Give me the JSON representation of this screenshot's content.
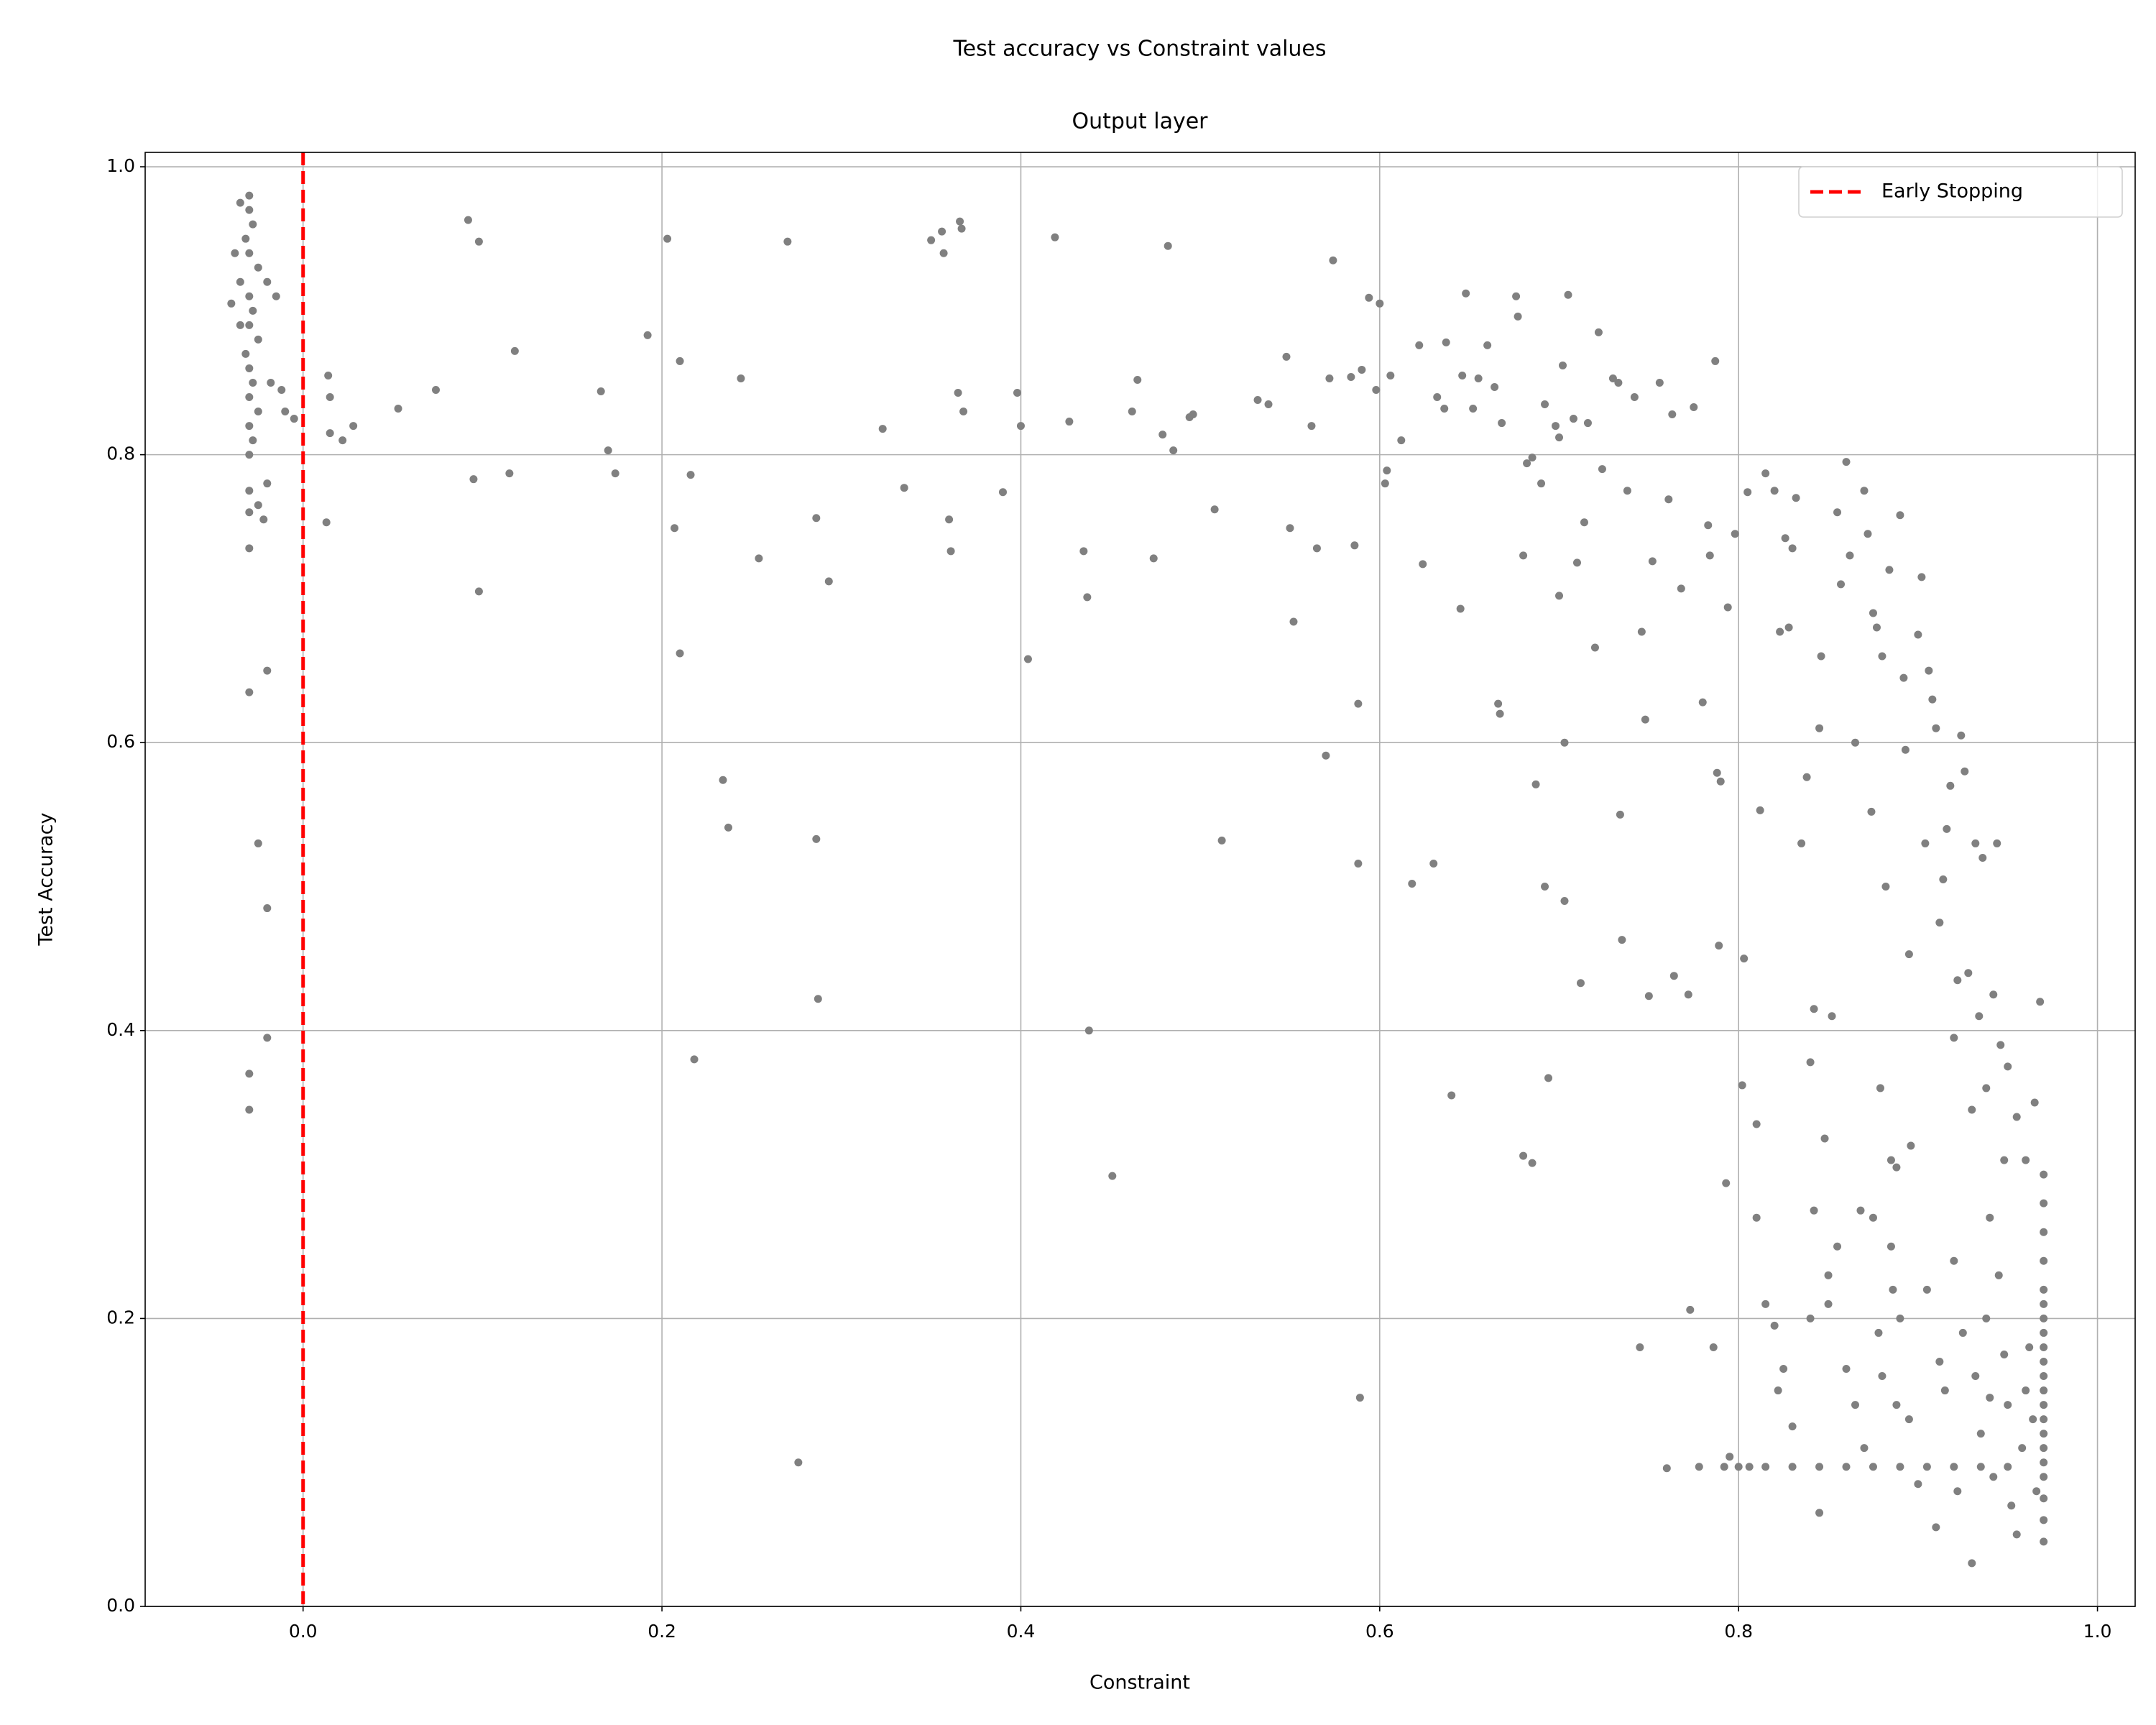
{
  "chart_data": {
    "type": "scatter",
    "suptitle": "Test accuracy vs Constraint values",
    "title": "Output layer",
    "xlabel": "Constraint",
    "ylabel": "Test Accuracy",
    "xlim": [
      -0.088,
      1.021
    ],
    "ylim": [
      0,
      1.01
    ],
    "xticks": [
      {
        "value": 0,
        "label": "0.0"
      },
      0.2,
      0.4,
      0.6,
      0.8,
      {
        "value": 1,
        "label": "1.0"
      }
    ],
    "yticks": [
      {
        "value": 0,
        "label": "0.0"
      },
      0.2,
      0.4,
      0.6,
      0.8,
      {
        "value": 1,
        "label": "1.0"
      }
    ],
    "grid": true,
    "legend": "upper right",
    "vlines": [
      {
        "x": 0,
        "name": "Early Stopping",
        "color": "#ff0000"
      }
    ],
    "series": [
      {
        "color": "#808080",
        "x": [
          -0.03,
          -0.035,
          -0.03,
          -0.028,
          -0.032,
          -0.03,
          -0.025,
          -0.035,
          -0.03,
          -0.028,
          -0.04,
          -0.03,
          -0.025,
          -0.032,
          -0.03,
          -0.028,
          -0.03,
          -0.025,
          -0.03,
          -0.028,
          -0.03,
          -0.02,
          -0.015,
          -0.01,
          -0.005,
          -0.018,
          -0.02,
          -0.03,
          -0.03,
          -0.025,
          -0.03,
          -0.02,
          -0.03,
          -0.025,
          -0.02,
          -0.02,
          -0.03,
          -0.03,
          -0.035,
          -0.038,
          -0.022,
          -0.012,
          0.014,
          0.015,
          0.015,
          0.022,
          0.028,
          0.013,
          0.053,
          0.074,
          0.092,
          0.098,
          0.095,
          0.098,
          0.115,
          0.118,
          0.166,
          0.17,
          0.174,
          0.192,
          0.203,
          0.207,
          0.21,
          0.21,
          0.216,
          0.218,
          0.234,
          0.237,
          0.244,
          0.254,
          0.27,
          0.276,
          0.286,
          0.286,
          0.287,
          0.293,
          0.323,
          0.335,
          0.35,
          0.356,
          0.357,
          0.36,
          0.361,
          0.365,
          0.366,
          0.367,
          0.368,
          0.39,
          0.398,
          0.4,
          0.404,
          0.419,
          0.427,
          0.435,
          0.437,
          0.438,
          0.451,
          0.462,
          0.465,
          0.474,
          0.479,
          0.482,
          0.485,
          0.494,
          0.496,
          0.508,
          0.512,
          0.532,
          0.538,
          0.548,
          0.55,
          0.552,
          0.562,
          0.565,
          0.57,
          0.572,
          0.574,
          0.584,
          0.586,
          0.588,
          0.588,
          0.589,
          0.59,
          0.594,
          0.598,
          0.6,
          0.603,
          0.604,
          0.606,
          0.612,
          0.618,
          0.622,
          0.624,
          0.63,
          0.632,
          0.636,
          0.637,
          0.64,
          0.645,
          0.646,
          0.648,
          0.652,
          0.655,
          0.66,
          0.664,
          0.666,
          0.667,
          0.668,
          0.676,
          0.677,
          0.68,
          0.68,
          0.682,
          0.685,
          0.685,
          0.687,
          0.69,
          0.692,
          0.692,
          0.694,
          0.698,
          0.7,
          0.7,
          0.702,
          0.703,
          0.703,
          0.705,
          0.708,
          0.71,
          0.712,
          0.714,
          0.716,
          0.72,
          0.722,
          0.724,
          0.73,
          0.733,
          0.734,
          0.735,
          0.738,
          0.742,
          0.745,
          0.746,
          0.748,
          0.75,
          0.752,
          0.756,
          0.76,
          0.761,
          0.763,
          0.764,
          0.768,
          0.772,
          0.773,
          0.775,
          0.778,
          0.78,
          0.783,
          0.784,
          0.786,
          0.787,
          0.788,
          0.789,
          0.79,
          0.792,
          0.793,
          0.794,
          0.795,
          0.798,
          0.8,
          0.802,
          0.803,
          0.805,
          0.806,
          0.81,
          0.81,
          0.812,
          0.815,
          0.82,
          0.823,
          0.826,
          0.828,
          0.83,
          0.832,
          0.835,
          0.838,
          0.84,
          0.842,
          0.845,
          0.846,
          0.848,
          0.85,
          0.852,
          0.855,
          0.857,
          0.86,
          0.862,
          0.865,
          0.868,
          0.87,
          0.872,
          0.874,
          0.875,
          0.877,
          0.879,
          0.88,
          0.882,
          0.884,
          0.885,
          0.886,
          0.888,
          0.89,
          0.892,
          0.893,
          0.895,
          0.896,
          0.9,
          0.902,
          0.904,
          0.906,
          0.908,
          0.91,
          0.912,
          0.914,
          0.916,
          0.918,
          0.92,
          0.922,
          0.924,
          0.926,
          0.928,
          0.93,
          0.932,
          0.934,
          0.936,
          0.938,
          0.94,
          0.942,
          0.944,
          0.946,
          0.948,
          0.95,
          0.955,
          0.96,
          0.965,
          0.968,
          0.97,
          0.815,
          0.82,
          0.822,
          0.825,
          0.83,
          0.84,
          0.842,
          0.845,
          0.85,
          0.855,
          0.86,
          0.865,
          0.87,
          0.875,
          0.878,
          0.88,
          0.885,
          0.888,
          0.89,
          0.895,
          0.9,
          0.905,
          0.91,
          0.912,
          0.915,
          0.92,
          0.922,
          0.925,
          0.93,
          0.932,
          0.935,
          0.938,
          0.94,
          0.942,
          0.945,
          0.948,
          0.95,
          0.952,
          0.955,
          0.958,
          0.96,
          0.962,
          0.964,
          0.966,
          0.815,
          0.83,
          0.845,
          0.86,
          0.875,
          0.89,
          0.905,
          0.92,
          0.935,
          0.95,
          0.97,
          0.97,
          0.97,
          0.97,
          0.97,
          0.97,
          0.97,
          0.97,
          0.97,
          0.97,
          0.97,
          0.97,
          0.97,
          0.97,
          0.97,
          0.97,
          0.97,
          0.97,
          0.97,
          0.97
        ],
        "values": [
          0.98,
          0.975,
          0.97,
          0.96,
          0.95,
          0.94,
          0.93,
          0.92,
          0.91,
          0.9,
          0.905,
          0.89,
          0.88,
          0.87,
          0.86,
          0.85,
          0.84,
          0.83,
          0.82,
          0.81,
          0.8,
          0.92,
          0.91,
          0.83,
          0.825,
          0.85,
          0.78,
          0.775,
          0.76,
          0.765,
          0.735,
          0.65,
          0.635,
          0.53,
          0.485,
          0.395,
          0.37,
          0.345,
          0.89,
          0.94,
          0.755,
          0.845,
          0.855,
          0.84,
          0.815,
          0.81,
          0.82,
          0.753,
          0.832,
          0.845,
          0.963,
          0.948,
          0.783,
          0.705,
          0.787,
          0.872,
          0.844,
          0.803,
          0.787,
          0.883,
          0.95,
          0.749,
          0.865,
          0.662,
          0.786,
          0.38,
          0.574,
          0.541,
          0.853,
          0.728,
          0.948,
          0.1,
          0.756,
          0.533,
          0.422,
          0.712,
          0.818,
          0.777,
          0.949,
          0.955,
          0.94,
          0.755,
          0.733,
          0.843,
          0.962,
          0.957,
          0.83,
          0.774,
          0.843,
          0.82,
          0.658,
          0.951,
          0.823,
          0.733,
          0.701,
          0.4,
          0.299,
          0.83,
          0.852,
          0.728,
          0.814,
          0.945,
          0.803,
          0.826,
          0.828,
          0.762,
          0.532,
          0.838,
          0.835,
          0.868,
          0.749,
          0.684,
          0.82,
          0.735,
          0.591,
          0.853,
          0.935,
          0.854,
          0.737,
          0.627,
          0.516,
          0.145,
          0.859,
          0.909,
          0.845,
          0.905,
          0.78,
          0.789,
          0.855,
          0.81,
          0.502,
          0.876,
          0.724,
          0.516,
          0.84,
          0.832,
          0.878,
          0.355,
          0.693,
          0.855,
          0.912,
          0.832,
          0.853,
          0.876,
          0.847,
          0.627,
          0.62,
          0.822,
          0.91,
          0.896,
          0.73,
          0.313,
          0.794,
          0.308,
          0.798,
          0.571,
          0.78,
          0.5,
          0.835,
          0.367,
          0.82,
          0.812,
          0.702,
          0.862,
          0.49,
          0.6,
          0.911,
          0.825,
          0.725,
          0.433,
          0.753,
          0.822,
          0.666,
          0.885,
          0.79,
          0.853,
          0.85,
          0.55,
          0.463,
          0.775,
          0.84,
          0.18,
          0.677,
          0.616,
          0.424,
          0.726,
          0.85,
          0.096,
          0.769,
          0.828,
          0.438,
          0.707,
          0.425,
          0.206,
          0.833,
          0.097,
          0.628,
          0.751,
          0.73,
          0.18,
          0.865,
          0.579,
          0.459,
          0.573,
          0.097,
          0.294,
          0.694,
          0.104,
          0.745,
          0.097,
          0.362,
          0.45,
          0.774,
          0.097,
          0.335,
          0.27,
          0.553,
          0.787,
          0.775,
          0.677,
          0.742,
          0.68,
          0.735,
          0.77,
          0.53,
          0.576,
          0.378,
          0.415,
          0.61,
          0.66,
          0.325,
          0.21,
          0.41,
          0.76,
          0.71,
          0.795,
          0.73,
          0.6,
          0.275,
          0.775,
          0.745,
          0.552,
          0.69,
          0.68,
          0.36,
          0.66,
          0.5,
          0.72,
          0.31,
          0.22,
          0.305,
          0.758,
          0.645,
          0.595,
          0.453,
          0.32,
          0.675,
          0.715,
          0.53,
          0.65,
          0.63,
          0.61,
          0.475,
          0.505,
          0.54,
          0.57,
          0.395,
          0.435,
          0.605,
          0.58,
          0.44,
          0.345,
          0.53,
          0.41,
          0.52,
          0.36,
          0.27,
          0.425,
          0.53,
          0.39,
          0.31,
          0.375,
          0.34,
          0.31,
          0.35,
          0.42,
          0.3,
          0.21,
          0.195,
          0.15,
          0.165,
          0.125,
          0.2,
          0.275,
          0.065,
          0.23,
          0.25,
          0.165,
          0.14,
          0.11,
          0.27,
          0.19,
          0.16,
          0.25,
          0.14,
          0.2,
          0.13,
          0.085,
          0.22,
          0.055,
          0.17,
          0.15,
          0.24,
          0.08,
          0.19,
          0.03,
          0.16,
          0.12,
          0.2,
          0.145,
          0.09,
          0.23,
          0.175,
          0.14,
          0.07,
          0.05,
          0.11,
          0.15,
          0.18,
          0.13,
          0.08,
          0.097,
          0.097,
          0.097,
          0.097,
          0.097,
          0.097,
          0.097,
          0.097,
          0.097,
          0.097,
          0.045,
          0.06,
          0.075,
          0.09,
          0.1,
          0.11,
          0.12,
          0.13,
          0.14,
          0.15,
          0.16,
          0.17,
          0.18,
          0.19,
          0.2,
          0.21,
          0.22,
          0.24,
          0.26,
          0.28
        ]
      }
    ]
  }
}
